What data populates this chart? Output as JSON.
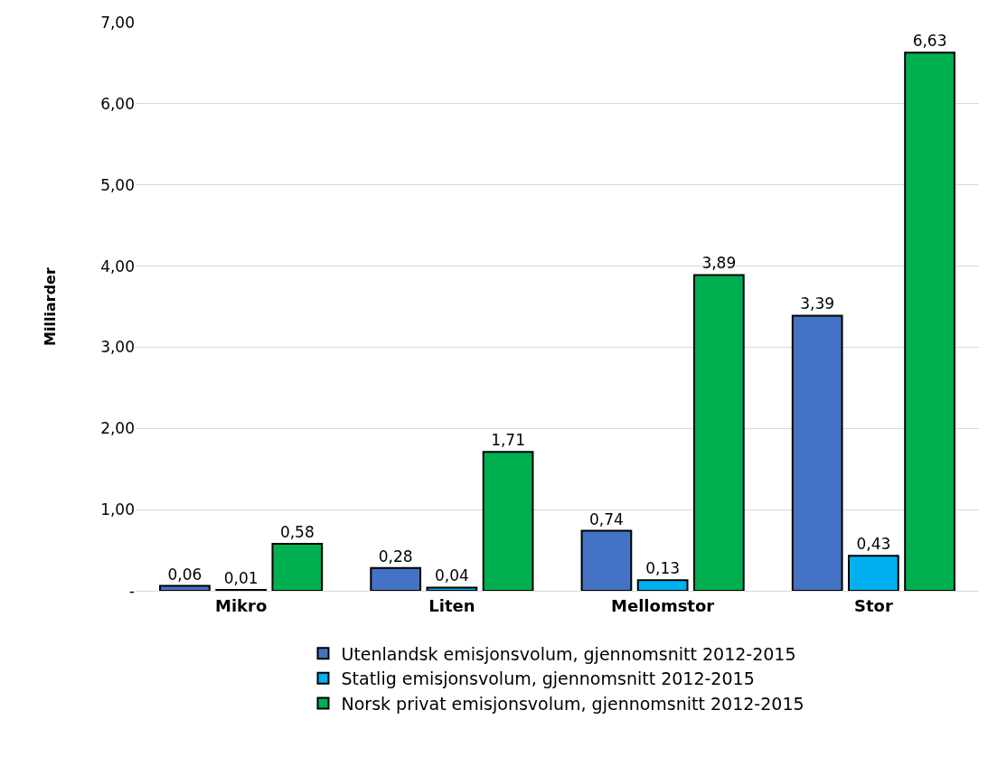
{
  "chart_data": {
    "type": "bar",
    "ylabel": "Milliarder",
    "categories": [
      "Mikro",
      "Liten",
      "Mellomstor",
      "Stor"
    ],
    "series": [
      {
        "name": "Utenlandsk emisjonsvolum, gjennomsnitt 2012-2015",
        "color": "#4472c4",
        "values": [
          0.06,
          0.28,
          0.74,
          3.39
        ],
        "value_labels": [
          "0,06",
          "0,28",
          "0,74",
          "3,39"
        ]
      },
      {
        "name": "Statlig emisjonsvolum, gjennomsnitt 2012-2015",
        "color": "#00b0f0",
        "values": [
          0.01,
          0.04,
          0.13,
          0.43
        ],
        "value_labels": [
          "0,01",
          "0,04",
          "0,13",
          "0,43"
        ]
      },
      {
        "name": "Norsk privat emisjonsvolum, gjennomsnitt 2012-2015",
        "color": "#00b050",
        "values": [
          0.58,
          1.71,
          3.89,
          6.63
        ],
        "value_labels": [
          "0,58",
          "1,71",
          "3,89",
          "6,63"
        ]
      }
    ],
    "ylim": [
      0,
      7
    ],
    "yticks": [
      {
        "value": 0,
        "label": "-"
      },
      {
        "value": 1,
        "label": "1,00"
      },
      {
        "value": 2,
        "label": "2,00"
      },
      {
        "value": 3,
        "label": "3,00"
      },
      {
        "value": 4,
        "label": "4,00"
      },
      {
        "value": 5,
        "label": "5,00"
      },
      {
        "value": 6,
        "label": "6,00"
      },
      {
        "value": 7,
        "label": "7,00"
      }
    ],
    "grid": "y",
    "legend": "bottom"
  }
}
